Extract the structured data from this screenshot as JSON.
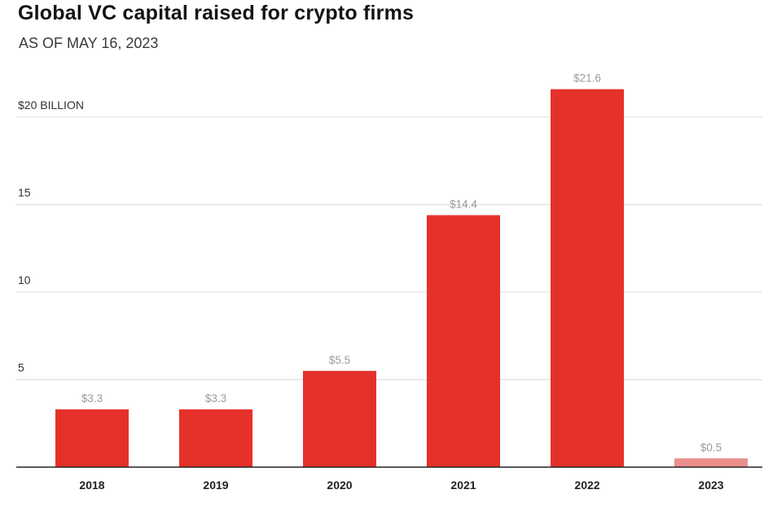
{
  "chart_data": {
    "type": "bar",
    "title": "Global VC capital raised for crypto firms",
    "subtitle": "AS OF MAY 16, 2023",
    "categories": [
      "2018",
      "2019",
      "2020",
      "2021",
      "2022",
      "2023"
    ],
    "values": [
      3.3,
      3.3,
      5.5,
      14.4,
      21.6,
      0.5
    ],
    "value_labels": [
      "$3.3",
      "$3.3",
      "$5.5",
      "$14.4",
      "$21.6",
      "$0.5"
    ],
    "y_ticks": [
      5,
      10,
      15,
      20
    ],
    "y_tick_labels": [
      "5",
      "10",
      "15",
      "$20 BILLION"
    ],
    "ylim": [
      0,
      22
    ],
    "grid": true,
    "colors": {
      "bar": "#e5312a",
      "bar_partial_year": "#ec8f8c",
      "grid": "#dcdcdc",
      "axis": "#222222",
      "value_label": "#9a9a9a"
    }
  }
}
